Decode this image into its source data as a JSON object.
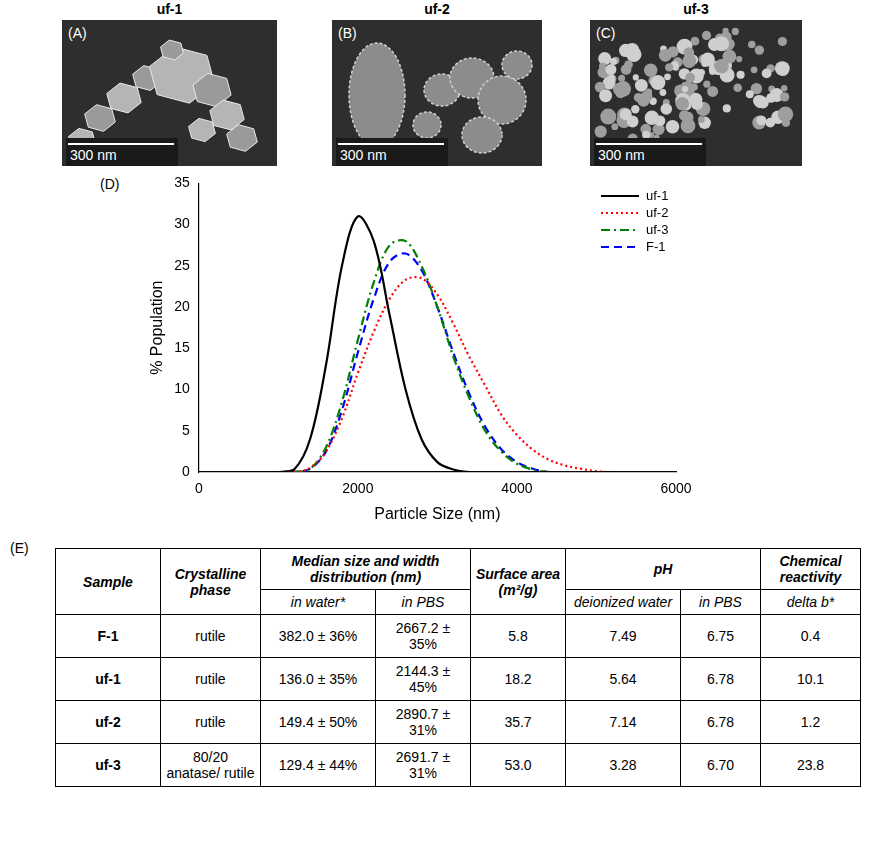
{
  "image_panels": [
    {
      "title": "uf-1",
      "letter": "(A)",
      "scale_bar": "300 nm"
    },
    {
      "title": "uf-2",
      "letter": "(B)",
      "scale_bar": "300 nm"
    },
    {
      "title": "uf-3",
      "letter": "(C)",
      "scale_bar": "300 nm"
    }
  ],
  "chart_data": {
    "type": "line",
    "panel_label": "(D)",
    "x_label": "Particle Size (nm)",
    "y_label": "% Population",
    "x": [
      0,
      200,
      400,
      600,
      800,
      1000,
      1200,
      1400,
      1600,
      1800,
      2000,
      2200,
      2400,
      2600,
      2800,
      3000,
      3200,
      3400,
      3600,
      3800,
      4000,
      4200,
      4400,
      4600,
      4800,
      5000,
      5200,
      5400,
      5600,
      5800,
      6000
    ],
    "series": [
      {
        "name": "uf-1",
        "color": "#000000",
        "line_style": "solid",
        "values": [
          0,
          0,
          0,
          0,
          0,
          0,
          0.3,
          4,
          13,
          25,
          31,
          28,
          19,
          10,
          4,
          1.2,
          0.3,
          0,
          0,
          0,
          0,
          0,
          0,
          0,
          0,
          0,
          0,
          0,
          0,
          0,
          0
        ]
      },
      {
        "name": "uf-2",
        "color": "#ff0000",
        "line_style": "dotted",
        "values": [
          0,
          0,
          0,
          0,
          0,
          0,
          0,
          0.5,
          2.5,
          6.5,
          12,
          17,
          21,
          23.3,
          23.5,
          21.5,
          18,
          14,
          10.5,
          7,
          4.5,
          2.7,
          1.5,
          0.8,
          0.4,
          0.1,
          0,
          0,
          0,
          0,
          0
        ]
      },
      {
        "name": "uf-3",
        "color": "#008000",
        "line_style": "dashdot",
        "values": [
          0,
          0,
          0,
          0,
          0,
          0,
          0,
          0.4,
          3,
          8.5,
          16,
          23,
          27.5,
          28,
          25,
          20,
          14,
          9,
          5,
          2.5,
          1,
          0.3,
          0,
          0,
          0,
          0,
          0,
          0,
          0,
          0,
          0
        ]
      },
      {
        "name": "F-1",
        "color": "#0000ff",
        "line_style": "dashed",
        "values": [
          0,
          0,
          0,
          0,
          0,
          0,
          0,
          0.4,
          2.5,
          7.5,
          14.5,
          21,
          25.5,
          26.5,
          24.5,
          20,
          14.5,
          9.5,
          5.5,
          2.8,
          1.2,
          0.4,
          0,
          0,
          0,
          0,
          0,
          0,
          0,
          0,
          0
        ]
      }
    ],
    "xlim": [
      0,
      6000
    ],
    "xticks": [
      0,
      2000,
      4000,
      6000
    ],
    "ylim": [
      0,
      35
    ],
    "yticks": [
      0,
      5,
      10,
      15,
      20,
      25,
      30,
      35
    ],
    "grid": false,
    "legend": "upper right"
  },
  "table": {
    "panel_label": "(E)",
    "columns": [
      {
        "label": "Sample"
      },
      {
        "label": "Crystalline phase"
      },
      {
        "label": "Median size and width distribution (nm)",
        "sub": [
          "in water*",
          "in PBS"
        ]
      },
      {
        "label": "Surface area (m²/g)"
      },
      {
        "label": "pH",
        "sub": [
          "deionized water",
          "in PBS"
        ]
      },
      {
        "label": "Chemical reactivity",
        "sub": [
          "delta b*"
        ]
      }
    ],
    "rows": [
      [
        "F-1",
        "rutile",
        "382.0 ± 36%",
        "2667.2 ± 35%",
        "5.8",
        "7.49",
        "6.75",
        "0.4"
      ],
      [
        "uf-1",
        "rutile",
        "136.0 ± 35%",
        "2144.3 ± 45%",
        "18.2",
        "5.64",
        "6.78",
        "10.1"
      ],
      [
        "uf-2",
        "rutile",
        "149.4 ± 50%",
        "2890.7 ± 31%",
        "35.7",
        "7.14",
        "6.78",
        "1.2"
      ],
      [
        "uf-3",
        "80/20 anatase/ rutile",
        "129.4 ± 44%",
        "2691.7 ± 31%",
        "53.0",
        "3.28",
        "6.70",
        "23.8"
      ]
    ]
  }
}
